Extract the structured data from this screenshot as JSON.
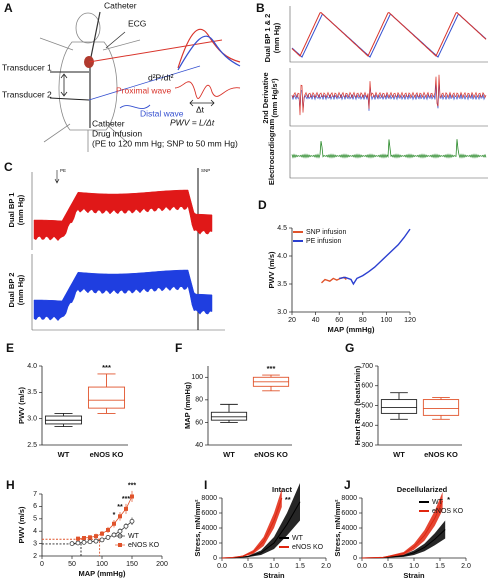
{
  "panel_a": {
    "label": "A",
    "catheter_top": "Catheter",
    "ecg": "ECG",
    "transducer_1": "Transducer 1",
    "transducer_2": "Transducer 2",
    "derivative": "d²P/dt²",
    "proximal": "Proximal wave",
    "distal": "Distal wave",
    "delta_t": "Δt",
    "pwv": "PWV = L/Δt",
    "catheter_bottom": "Catheter",
    "infusion": "Drug infusion",
    "infusion_range": "(PE to 120 mm Hg; SNP to 50 mm Hg)"
  },
  "panel_b": {
    "label": "B",
    "bp_label": "Dual BP 1 & 2",
    "bp_unit": "(mm Hg)",
    "deriv_label": "2nd Derivative",
    "deriv_unit": "(mm Hg/s²)",
    "ecg_label": "Electrocardiogram"
  },
  "panel_c": {
    "label": "C",
    "bp1_label": "Dual BP 1",
    "bp1_unit": "(mm Hg)",
    "bp2_label": "Dual BP 2",
    "bp2_unit": "(mm Hg)",
    "pe": "PE",
    "snp": "SNP"
  },
  "chart_data": [
    {
      "type": "line",
      "label": "D",
      "xlabel": "MAP (mmHg)",
      "ylabel": "PWV (m/s)",
      "xlim": [
        20,
        120
      ],
      "xticks": [
        20,
        40,
        60,
        80,
        100,
        120
      ],
      "ylim": [
        3,
        4.5
      ],
      "yticks": [
        {
          "value": 3,
          "label": "3.0"
        },
        3.5,
        {
          "value": 4,
          "label": "4.0"
        },
        4.5
      ],
      "legend": "upper left",
      "series": [
        {
          "name": "SNP infusion",
          "color": "#e0532b",
          "x": [
            45,
            48,
            52,
            55,
            58,
            61,
            64,
            66
          ],
          "values": [
            3.52,
            3.58,
            3.55,
            3.6,
            3.57,
            3.6,
            3.62,
            3.58
          ]
        },
        {
          "name": "PE infusion",
          "color": "#2b3fd0",
          "x": [
            60,
            65,
            70,
            72,
            75,
            80,
            85,
            90,
            95,
            100,
            105,
            110,
            115,
            120
          ],
          "values": [
            3.6,
            3.62,
            3.58,
            3.5,
            3.6,
            3.65,
            3.72,
            3.8,
            3.9,
            4.0,
            4.1,
            4.2,
            4.33,
            4.48
          ]
        }
      ]
    },
    {
      "type": "box",
      "label": "E",
      "ylabel": "PWV (m/s)",
      "categories": [
        "WT",
        "eNOS KO"
      ],
      "ylim": [
        2.5,
        4
      ],
      "yticks": [
        2.5,
        {
          "value": 3,
          "label": "3.0"
        },
        3.5,
        {
          "value": 4,
          "label": "4.0"
        }
      ],
      "annotation": "***",
      "boxes": [
        {
          "min": 2.85,
          "q1": 2.9,
          "median": 2.97,
          "q3": 3.05,
          "max": 3.1,
          "color": "#222222"
        },
        {
          "min": 3.1,
          "q1": 3.2,
          "median": 3.35,
          "q3": 3.6,
          "max": 3.85,
          "color": "#e0532b"
        }
      ]
    },
    {
      "type": "box",
      "label": "F",
      "ylabel": "MAP (mmHg)",
      "categories": [
        "WT",
        "eNOS KO"
      ],
      "ylim": [
        40,
        110
      ],
      "yticks": [
        40,
        60,
        80,
        100
      ],
      "annotation": "***",
      "boxes": [
        {
          "min": 60,
          "q1": 62,
          "median": 65,
          "q3": 69,
          "max": 76,
          "color": "#222222"
        },
        {
          "min": 88,
          "q1": 92,
          "median": 96,
          "q3": 100,
          "max": 102,
          "color": "#e0532b"
        }
      ]
    },
    {
      "type": "box",
      "label": "G",
      "ylabel": "Heart Rate (beats/min)",
      "categories": [
        "WT",
        "eNOS KO"
      ],
      "ylim": [
        300,
        700
      ],
      "yticks": [
        300,
        400,
        500,
        600,
        700
      ],
      "boxes": [
        {
          "min": 430,
          "q1": 460,
          "median": 490,
          "q3": 530,
          "max": 565,
          "color": "#222222"
        },
        {
          "min": 430,
          "q1": 450,
          "median": 485,
          "q3": 530,
          "max": 540,
          "color": "#e0532b"
        }
      ]
    },
    {
      "type": "errorbar",
      "label": "H",
      "xlabel": "MAP (mmHg)",
      "ylabel": "PWV (m/s)",
      "xlim": [
        0,
        200
      ],
      "xticks": [
        0,
        50,
        100,
        150,
        200
      ],
      "ylim": [
        2,
        7
      ],
      "yticks": [
        2,
        3,
        4,
        5,
        6,
        7
      ],
      "legend": "lower right",
      "annotations": [
        "*",
        "**",
        "***",
        "***"
      ],
      "series": [
        {
          "name": "WT",
          "color": "#333333",
          "marker": "circle",
          "x": [
            50,
            60,
            70,
            80,
            90,
            100,
            110,
            120,
            130,
            140,
            150
          ],
          "values": [
            3.0,
            3.05,
            3.1,
            3.15,
            3.2,
            3.3,
            3.5,
            3.7,
            4.0,
            4.4,
            4.8
          ],
          "errors": [
            0.1,
            0.1,
            0.12,
            0.12,
            0.15,
            0.15,
            0.18,
            0.2,
            0.22,
            0.25,
            0.3
          ]
        },
        {
          "name": "eNOS KO",
          "color": "#e0532b",
          "marker": "square",
          "x": [
            60,
            70,
            80,
            90,
            100,
            110,
            120,
            130,
            140,
            150
          ],
          "values": [
            3.4,
            3.45,
            3.5,
            3.6,
            3.8,
            4.1,
            4.6,
            5.2,
            5.8,
            6.8
          ],
          "errors": [
            0.15,
            0.15,
            0.18,
            0.2,
            0.22,
            0.25,
            0.3,
            0.35,
            0.4,
            0.45
          ]
        }
      ]
    },
    {
      "type": "area",
      "label": "I",
      "title": "Intact",
      "xlabel": "Strain",
      "ylabel": "Stress, mN/mm²",
      "xlim": [
        0,
        2
      ],
      "xticks": [
        {
          "value": 0,
          "label": "0.0"
        },
        0.5,
        {
          "value": 1,
          "label": "1.0"
        },
        1.5,
        {
          "value": 2,
          "label": "2.0"
        }
      ],
      "ylim": [
        0,
        8000
      ],
      "yticks": [
        0,
        2000,
        4000,
        6000,
        8000
      ],
      "legend": "lower right",
      "annotation": "**",
      "series": [
        {
          "name": "WT",
          "color": "#000000",
          "x": [
            0,
            0.25,
            0.5,
            0.75,
            1.0,
            1.25,
            1.5
          ],
          "values": [
            0,
            50,
            200,
            700,
            2000,
            4500,
            7500
          ],
          "errors": [
            0,
            20,
            80,
            300,
            800,
            1500,
            2500
          ]
        },
        {
          "name": "eNOS KO",
          "color": "#e0260f",
          "x": [
            0,
            0.2,
            0.4,
            0.6,
            0.8,
            1.0,
            1.15
          ],
          "values": [
            0,
            60,
            250,
            800,
            2200,
            5000,
            8000
          ],
          "errors": [
            0,
            20,
            80,
            250,
            600,
            1000,
            1200
          ]
        }
      ]
    },
    {
      "type": "area",
      "label": "J",
      "title": "Decellularized",
      "xlabel": "Strain",
      "ylabel": "Stress, mN/mm²",
      "xlim": [
        0,
        2
      ],
      "xticks": [
        {
          "value": 0,
          "label": "0.0"
        },
        0.5,
        {
          "value": 1,
          "label": "1.0"
        },
        1.5,
        {
          "value": 2,
          "label": "2.0"
        }
      ],
      "ylim": [
        0,
        8000
      ],
      "yticks": [
        0,
        2000,
        4000,
        6000,
        8000
      ],
      "legend": "upper right",
      "annotation": "*",
      "series": [
        {
          "name": "WT",
          "color": "#000000",
          "x": [
            0,
            0.4,
            0.8,
            1.0,
            1.2,
            1.4,
            1.6
          ],
          "values": [
            0,
            50,
            300,
            700,
            1400,
            2500,
            3800
          ],
          "errors": [
            0,
            30,
            150,
            300,
            500,
            800,
            1200
          ]
        },
        {
          "name": "eNOS KO",
          "color": "#e0260f",
          "x": [
            0,
            0.4,
            0.8,
            1.0,
            1.2,
            1.4,
            1.55
          ],
          "values": [
            0,
            80,
            600,
            1500,
            3000,
            5300,
            7600
          ],
          "errors": [
            0,
            40,
            200,
            400,
            700,
            1000,
            1200
          ]
        }
      ]
    }
  ]
}
